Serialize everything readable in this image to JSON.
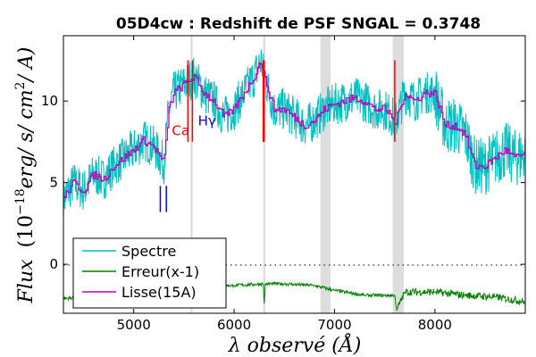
{
  "chart_data": {
    "type": "line",
    "title": "05D4cw : Redshift de PSF SNGAL = 0.3748",
    "xlabel": "λ observé (Å)",
    "ylabel": "Flux (10^-18 erg/ s/ cm^2/ A)",
    "ylabel_parts": {
      "flux": "Flux",
      "open": "(10",
      "exp": "−18",
      "rest": "erg/ s/ cm",
      "exp2": "2",
      "tail": "/ A)"
    },
    "xlim": [
      4300,
      8900
    ],
    "ylim": [
      -3,
      14
    ],
    "xticks": [
      5000,
      6000,
      7000,
      8000
    ],
    "yticks": [
      0,
      5,
      10
    ],
    "grid": false,
    "legend_position": "bottom-left",
    "zero_line": {
      "y": 0,
      "style": "dotted"
    },
    "masked_bands": [
      [
        6860,
        6960
      ],
      [
        7580,
        7690
      ]
    ],
    "sky_lines": [
      5577,
      6300
    ],
    "series": [
      {
        "name": "Spectre",
        "color": "#00bfbf",
        "x": [
          4300,
          4400,
          4500,
          4600,
          4700,
          4800,
          4900,
          5000,
          5100,
          5200,
          5300,
          5350,
          5400,
          5500,
          5600,
          5700,
          5800,
          5900,
          6000,
          6100,
          6200,
          6270,
          6300,
          6350,
          6400,
          6500,
          6600,
          6700,
          6800,
          6900,
          7000,
          7100,
          7200,
          7300,
          7400,
          7500,
          7580,
          7600,
          7650,
          7700,
          7800,
          7900,
          8000,
          8100,
          8200,
          8300,
          8400,
          8500,
          8600,
          8700,
          8800,
          8900
        ],
        "y": [
          4.0,
          5.0,
          4.5,
          5.5,
          5.2,
          6.0,
          6.5,
          7.0,
          7.6,
          7.2,
          6.2,
          9.5,
          10.5,
          11.0,
          11.5,
          10.5,
          10.0,
          9.0,
          9.5,
          10.5,
          11.5,
          12.5,
          11.5,
          10.5,
          9.5,
          9.5,
          9.0,
          8.5,
          8.8,
          9.5,
          9.8,
          10.0,
          10.2,
          10.0,
          9.5,
          9.5,
          9.0,
          8.5,
          9.5,
          10.5,
          10.0,
          10.5,
          10.5,
          8.5,
          8.5,
          8.0,
          6.0,
          6.0,
          6.5,
          7.0,
          6.5,
          6.8
        ]
      },
      {
        "name": "Erreur(x-1)",
        "color": "#008000",
        "x": [
          4300,
          4500,
          4700,
          5000,
          5300,
          5500,
          5577,
          5700,
          6000,
          6290,
          6300,
          6310,
          6500,
          6800,
          7000,
          7300,
          7600,
          7620,
          7700,
          8000,
          8300,
          8600,
          8900
        ],
        "y": [
          -2.1,
          -2.0,
          -1.9,
          -1.7,
          -1.5,
          -1.4,
          -2.0,
          -1.3,
          -1.3,
          -1.2,
          -2.4,
          -1.2,
          -1.2,
          -1.3,
          -1.6,
          -1.9,
          -1.9,
          -2.8,
          -1.7,
          -1.7,
          -1.9,
          -2.0,
          -2.3
        ]
      },
      {
        "name": "Lisse(15A)",
        "color": "#bf00bf",
        "x": [
          4300,
          4400,
          4500,
          4600,
          4700,
          4800,
          4900,
          5000,
          5100,
          5200,
          5300,
          5350,
          5400,
          5500,
          5600,
          5700,
          5800,
          5900,
          6000,
          6100,
          6200,
          6270,
          6300,
          6350,
          6400,
          6500,
          6600,
          6700,
          6800,
          6900,
          7000,
          7100,
          7200,
          7300,
          7400,
          7500,
          7580,
          7600,
          7650,
          7700,
          7800,
          7900,
          8000,
          8100,
          8200,
          8300,
          8400,
          8500,
          8600,
          8700,
          8800,
          8900
        ],
        "y": [
          4.0,
          5.0,
          4.5,
          5.5,
          5.2,
          6.0,
          6.5,
          7.0,
          7.6,
          7.2,
          6.2,
          9.5,
          10.5,
          11.0,
          11.5,
          10.5,
          10.0,
          9.0,
          9.5,
          10.5,
          11.5,
          12.5,
          11.5,
          10.5,
          9.5,
          9.5,
          9.0,
          8.5,
          8.8,
          9.5,
          9.8,
          10.0,
          10.2,
          10.0,
          9.5,
          9.5,
          9.0,
          8.5,
          9.5,
          10.5,
          10.0,
          10.5,
          10.5,
          8.5,
          8.5,
          8.0,
          6.0,
          6.0,
          6.5,
          7.0,
          6.5,
          6.8
        ]
      }
    ],
    "annotations": [
      {
        "text": "Ca",
        "x": 5380,
        "y": 7.9,
        "color": "#ff0000",
        "marker_x": [
          5540,
          5585,
          6290,
          6300,
          7600
        ],
        "marker_y": [
          12.5,
          7.5
        ]
      },
      {
        "text": "Hγ",
        "x": 5640,
        "y": 8.5,
        "color": "#0000ff",
        "marker_x": [
          5265,
          5325
        ],
        "marker_y": [
          4.8,
          3.2
        ]
      }
    ]
  }
}
